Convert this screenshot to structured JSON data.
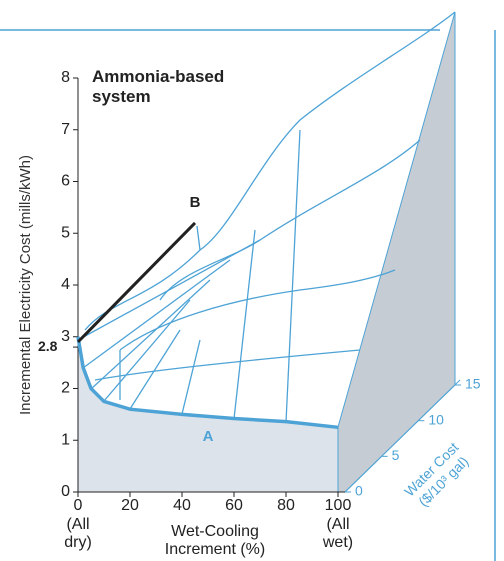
{
  "chart_data": {
    "type": "line",
    "title": [
      "Ammonia-based",
      "system"
    ],
    "ylabel": "Incremental Electricity Cost (mills/kWh)",
    "xlabel": [
      "Wet-Cooling",
      "Increment (%)"
    ],
    "x_end_labels": [
      [
        "(All",
        "dry)"
      ],
      [
        "(All",
        "wet)"
      ]
    ],
    "zlabel": [
      "Water Cost",
      "($/10³ gal)"
    ],
    "xlim": [
      0,
      100
    ],
    "xticks": [
      0,
      20,
      40,
      60,
      80,
      100
    ],
    "ylim": [
      0,
      8
    ],
    "yticks": [
      0,
      1,
      2,
      3,
      4,
      5,
      6,
      7,
      8
    ],
    "highlight_tick": 2.8,
    "zticks": [
      0,
      5,
      10,
      15
    ],
    "series": [
      {
        "name": "A",
        "color": "#4ea3d6",
        "x": [
          0,
          2,
          5,
          10,
          20,
          40,
          60,
          80,
          100
        ],
        "values": [
          3.0,
          2.4,
          2.0,
          1.75,
          1.6,
          1.5,
          1.42,
          1.36,
          1.25
        ]
      },
      {
        "name": "B",
        "color": "#222222",
        "x": [
          0,
          45
        ],
        "values": [
          2.9,
          5.2
        ]
      }
    ]
  }
}
